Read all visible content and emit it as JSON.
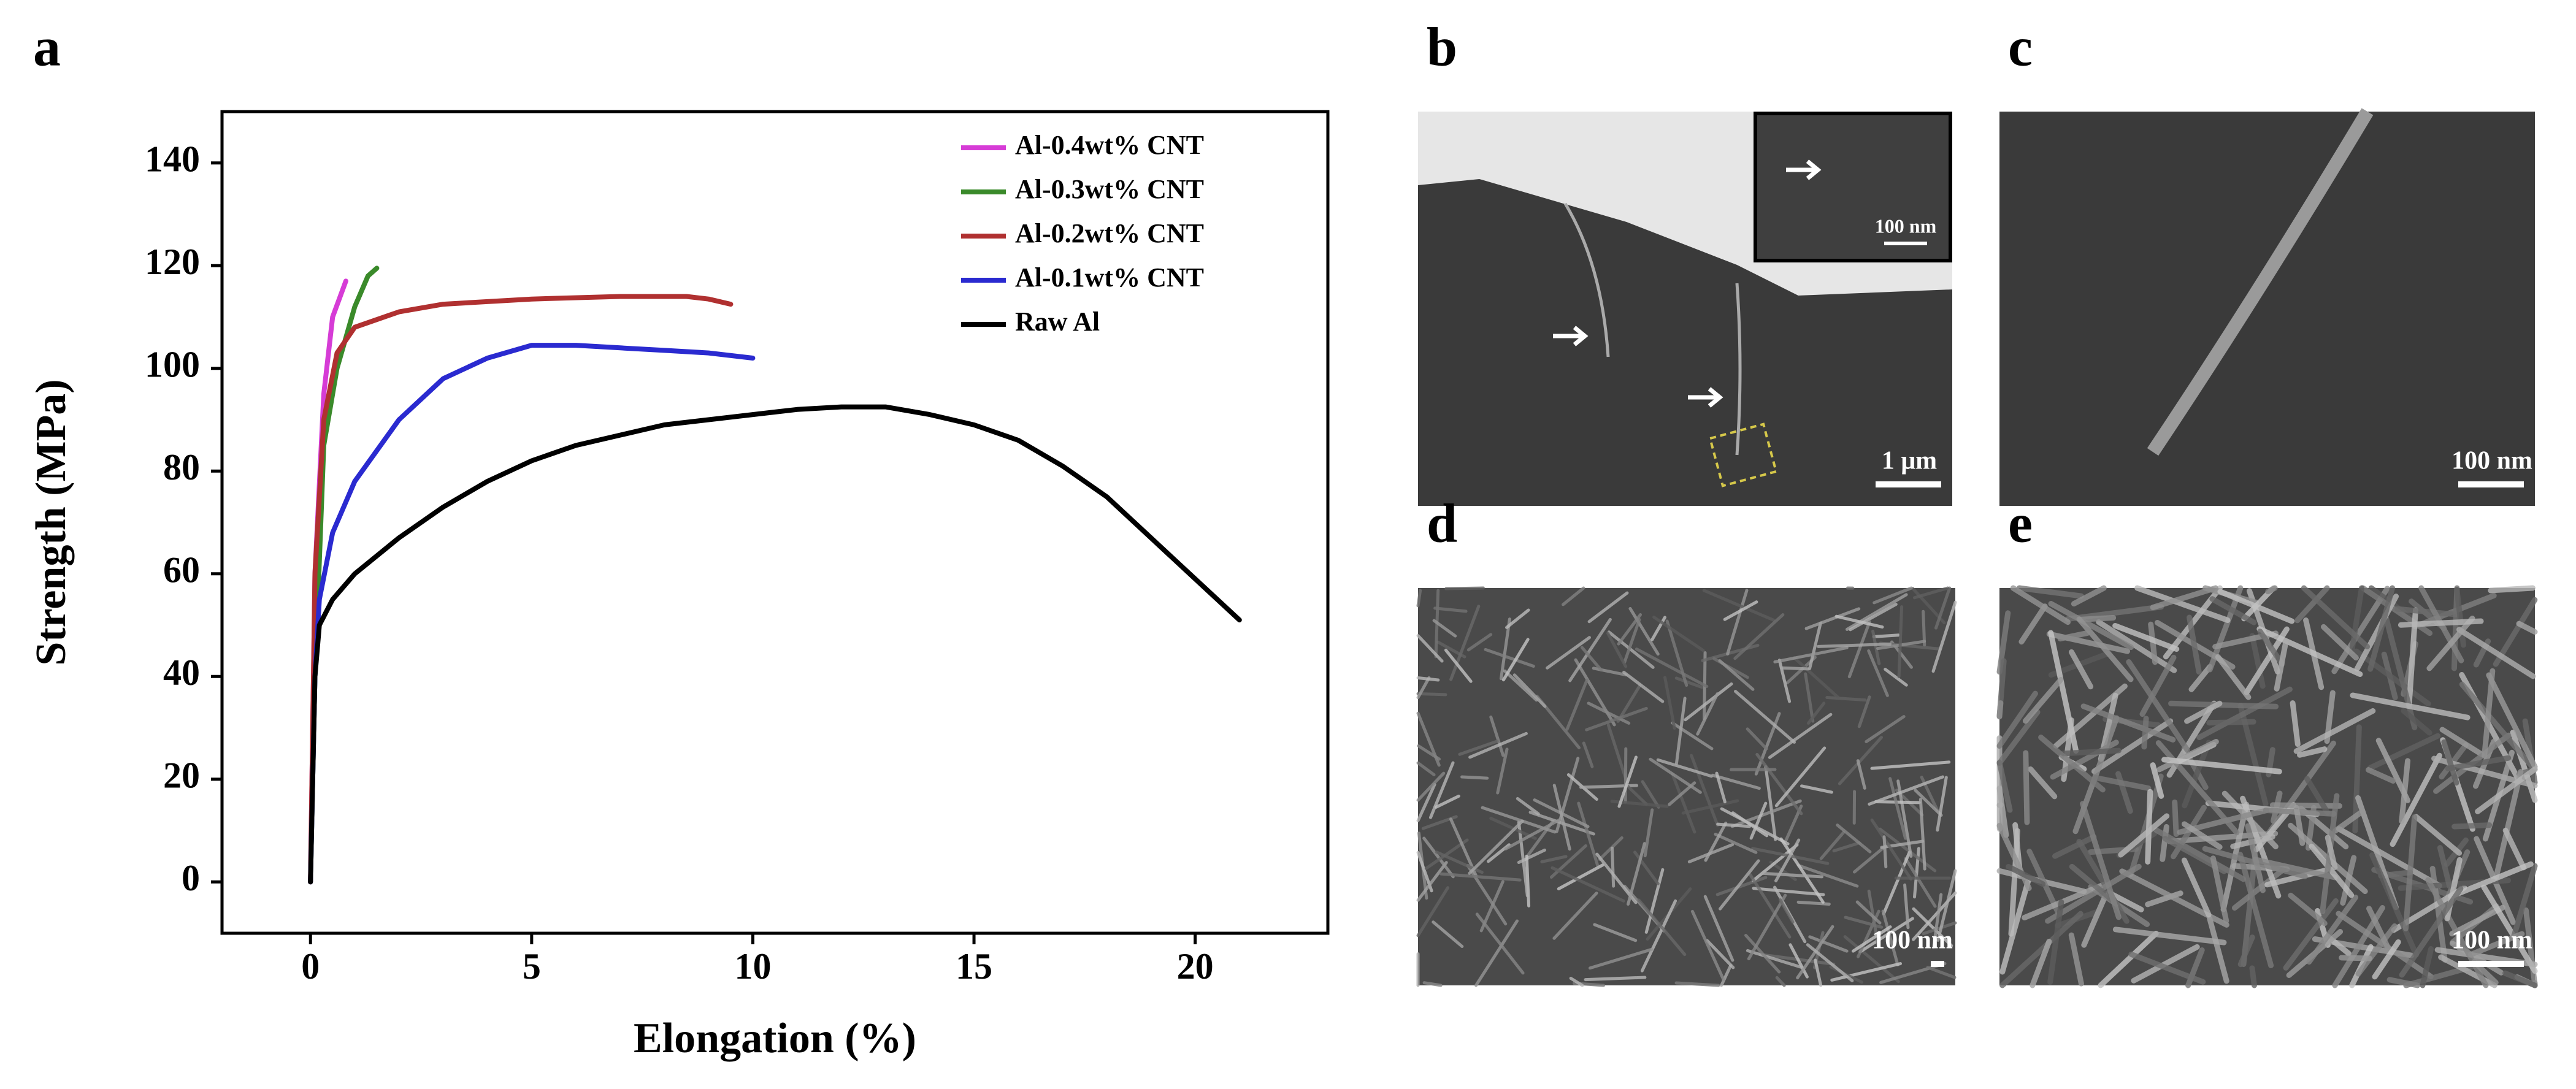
{
  "chart_data": {
    "type": "line",
    "panel_label": "a",
    "xlabel": "Elongation (%)",
    "ylabel": "Strength (MPa)",
    "xlim": [
      -2,
      23
    ],
    "ylim": [
      -10,
      150
    ],
    "xticks": [
      0,
      5,
      10,
      15,
      20
    ],
    "yticks": [
      0,
      20,
      40,
      60,
      80,
      100,
      120,
      140
    ],
    "legend": "upper right",
    "series": [
      {
        "name": "Al-0.4wt% CNT",
        "color": "#d63cd6",
        "x": [
          0,
          0.1,
          0.3,
          0.5,
          0.8
        ],
        "values": [
          0,
          60,
          95,
          110,
          117
        ]
      },
      {
        "name": "Al-0.3wt% CNT",
        "color": "#3a8a2a",
        "x": [
          0,
          0.1,
          0.3,
          0.6,
          1,
          1.3,
          1.5
        ],
        "values": [
          0,
          40,
          85,
          100,
          112,
          118,
          119.5
        ]
      },
      {
        "name": "Al-0.2wt% CNT",
        "color": "#b03030",
        "x": [
          0,
          0.1,
          0.3,
          0.6,
          1,
          2,
          3,
          5,
          7,
          8.5,
          9,
          9.5
        ],
        "values": [
          0,
          60,
          90,
          103,
          108,
          111,
          112.5,
          113.5,
          114,
          114,
          113.5,
          112.5
        ]
      },
      {
        "name": "Al-0.1wt% CNT",
        "color": "#2a2ad0",
        "x": [
          0,
          0.1,
          0.2,
          0.5,
          1,
          2,
          3,
          4,
          5,
          6,
          7,
          8,
          9,
          10
        ],
        "values": [
          0,
          40,
          55,
          68,
          78,
          90,
          98,
          102,
          104.5,
          104.5,
          104,
          103.5,
          103,
          102
        ]
      },
      {
        "name": "Raw Al",
        "color": "#000000",
        "x": [
          0,
          0.1,
          0.2,
          0.5,
          1,
          2,
          3,
          4,
          5,
          6,
          7,
          8,
          9,
          10,
          11,
          12,
          13,
          14,
          15,
          16,
          17,
          18,
          19,
          20,
          21
        ],
        "values": [
          0,
          40,
          50,
          55,
          60,
          67,
          73,
          78,
          82,
          85,
          87,
          89,
          90,
          91,
          92,
          92.5,
          92.5,
          91,
          89,
          86,
          81,
          75,
          67,
          59,
          51
        ]
      }
    ]
  },
  "panels": [
    {
      "label": "b",
      "scale_bar": "1 μm",
      "inset_scale_bar": "100 nm"
    },
    {
      "label": "c",
      "scale_bar": "100 nm"
    },
    {
      "label": "d",
      "scale_bar": "100 nm"
    },
    {
      "label": "e",
      "scale_bar": "100 nm"
    }
  ]
}
